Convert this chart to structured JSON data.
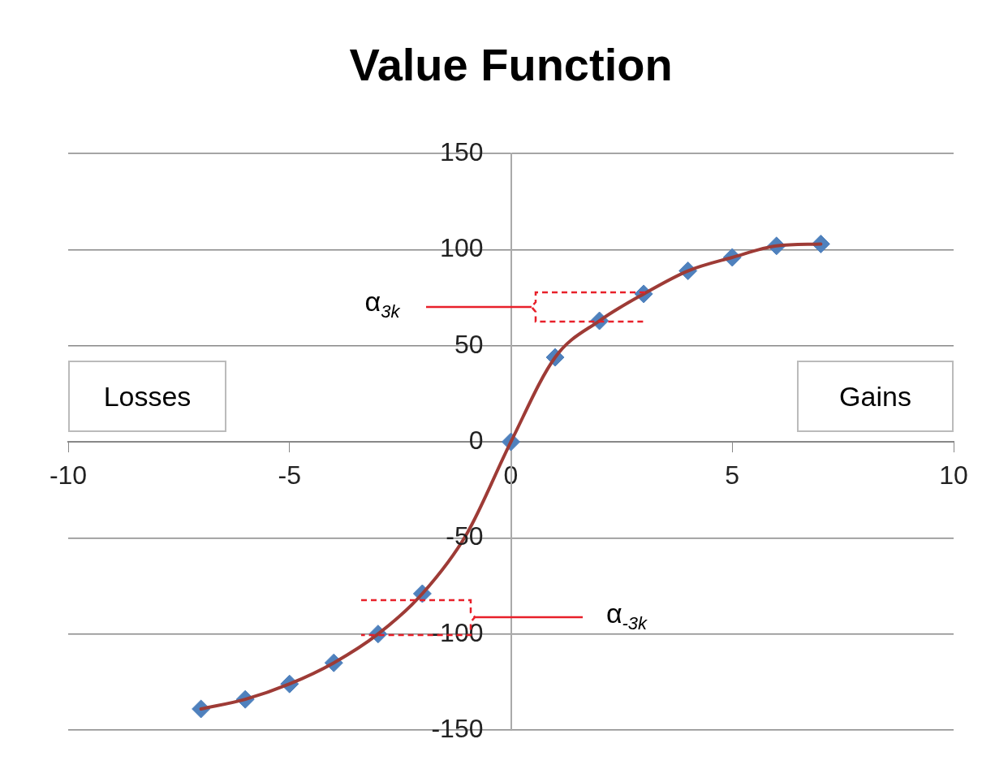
{
  "chart_data": {
    "type": "line",
    "title": "Value Function",
    "x": [
      -7,
      -6,
      -5,
      -4,
      -3,
      -2,
      -1,
      0,
      1,
      2,
      3,
      4,
      5,
      6,
      7
    ],
    "series": [
      {
        "color": "#9e3b36",
        "values": [
          -139,
          -134,
          -126,
          -115,
          -100,
          -79,
          -48,
          0,
          44,
          63,
          77,
          89,
          96,
          102,
          103
        ]
      },
      {
        "type": "scatter",
        "color": "#4f81bd",
        "marker": "diamond",
        "values": [
          -139,
          -134,
          -126,
          -115,
          -100,
          -79,
          null,
          0,
          44,
          63,
          77,
          89,
          96,
          102,
          103
        ]
      }
    ],
    "xlim": [
      -10,
      10
    ],
    "xticks": [
      -10,
      -5,
      0,
      5,
      10
    ],
    "ylim": [
      -150,
      150
    ],
    "yticks": [
      -150,
      -100,
      -50,
      0,
      50,
      100,
      150
    ],
    "grid": "y",
    "legend": false,
    "annotations": [
      "Losses",
      "Gains",
      "α$_{3k}$",
      "α$_{-3k}$"
    ]
  }
}
